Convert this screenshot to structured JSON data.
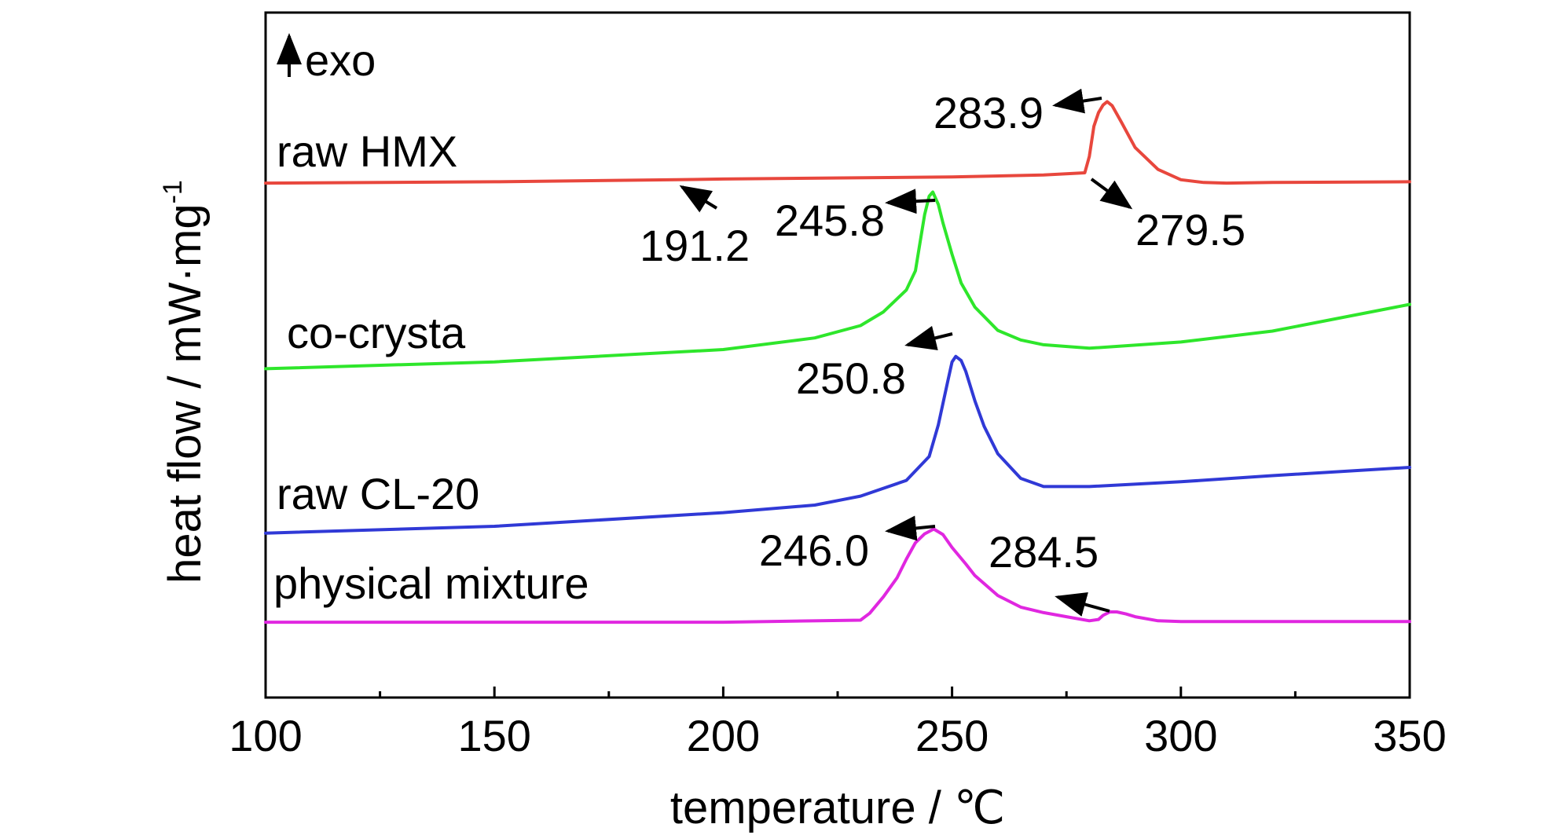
{
  "chart_data": {
    "type": "line",
    "title": "",
    "xlabel": "temperature / ℃",
    "ylabel": "heat flow / mW·mg",
    "ylabel_sup": "-1",
    "xlim": [
      100,
      350
    ],
    "ylim": [
      0,
      100
    ],
    "y_ticks_shown": false,
    "grid": false,
    "legend": "none",
    "x_ticks": [
      100,
      150,
      200,
      250,
      300,
      350
    ],
    "x_minor_ticks": [
      125,
      175,
      225,
      275,
      325
    ],
    "exo_label": "exo",
    "series": [
      {
        "name": "raw HMX",
        "color": "#e8473d",
        "x": [
          100,
          150,
          190,
          200,
          250,
          270,
          279,
          280,
          281,
          282,
          283,
          283.9,
          285,
          287,
          290,
          295,
          300,
          305,
          310,
          320,
          350
        ],
        "y": [
          75.1,
          75.3,
          75.6,
          75.7,
          76.0,
          76.3,
          76.6,
          79,
          83.4,
          85.4,
          86.5,
          87.0,
          86.4,
          84.0,
          80.3,
          77.1,
          75.6,
          75.2,
          75.1,
          75.2,
          75.3
        ]
      },
      {
        "name": "co-crysta",
        "color": "#2ee62b",
        "x": [
          100,
          150,
          200,
          220,
          230,
          235,
          240,
          242,
          243,
          244,
          245,
          245.8,
          247,
          248,
          250,
          252,
          255,
          260,
          265,
          270,
          280,
          300,
          320,
          350
        ],
        "y": [
          48,
          49,
          50.8,
          52.5,
          54.3,
          56.3,
          59.5,
          62.3,
          66.4,
          70.5,
          73.2,
          73.8,
          72,
          69.3,
          64.7,
          60.5,
          57,
          53.6,
          52.2,
          51.5,
          51.0,
          51.9,
          53.5,
          57.4
        ]
      },
      {
        "name": "raw CL-20",
        "color": "#3039d6",
        "x": [
          100,
          150,
          200,
          220,
          230,
          240,
          245,
          247,
          249,
          250,
          250.8,
          252,
          253,
          255,
          257,
          260,
          265,
          270,
          280,
          300,
          320,
          350
        ],
        "y": [
          24,
          25,
          27,
          28.1,
          29.4,
          31.7,
          35.2,
          39.8,
          46,
          49,
          49.8,
          49.2,
          47.6,
          43.3,
          39.6,
          35.6,
          32,
          30.8,
          30.8,
          31.5,
          32.4,
          33.6
        ]
      },
      {
        "name": "physical mixture",
        "color": "#e027e0",
        "x": [
          100,
          150,
          200,
          230,
          232,
          235,
          238,
          240,
          242,
          244,
          246.0,
          248,
          250,
          253,
          255,
          260,
          265,
          270,
          275,
          280,
          282,
          283,
          284.5,
          286,
          288,
          290,
          295,
          300,
          350
        ],
        "y": [
          11,
          11,
          11,
          11.3,
          12.3,
          14.7,
          17.5,
          20.2,
          22.6,
          23.9,
          24.6,
          23.8,
          21.9,
          19.5,
          17.8,
          14.9,
          13.2,
          12.4,
          11.8,
          11.2,
          11.4,
          12,
          12.5,
          12.5,
          12.2,
          11.8,
          11.2,
          11.1,
          11.1
        ]
      }
    ],
    "annotations": [
      {
        "text": "283.9",
        "x": 283.9,
        "series": 0
      },
      {
        "text": "279.5",
        "x": 279.5,
        "series": 0
      },
      {
        "text": "191.2",
        "x": 191.2,
        "series": 0
      },
      {
        "text": "245.8",
        "x": 245.8,
        "series": 1
      },
      {
        "text": "250.8",
        "x": 250.8,
        "series": 2
      },
      {
        "text": "246.0",
        "x": 246.0,
        "series": 3
      },
      {
        "text": "284.5",
        "x": 284.5,
        "series": 3
      }
    ]
  }
}
